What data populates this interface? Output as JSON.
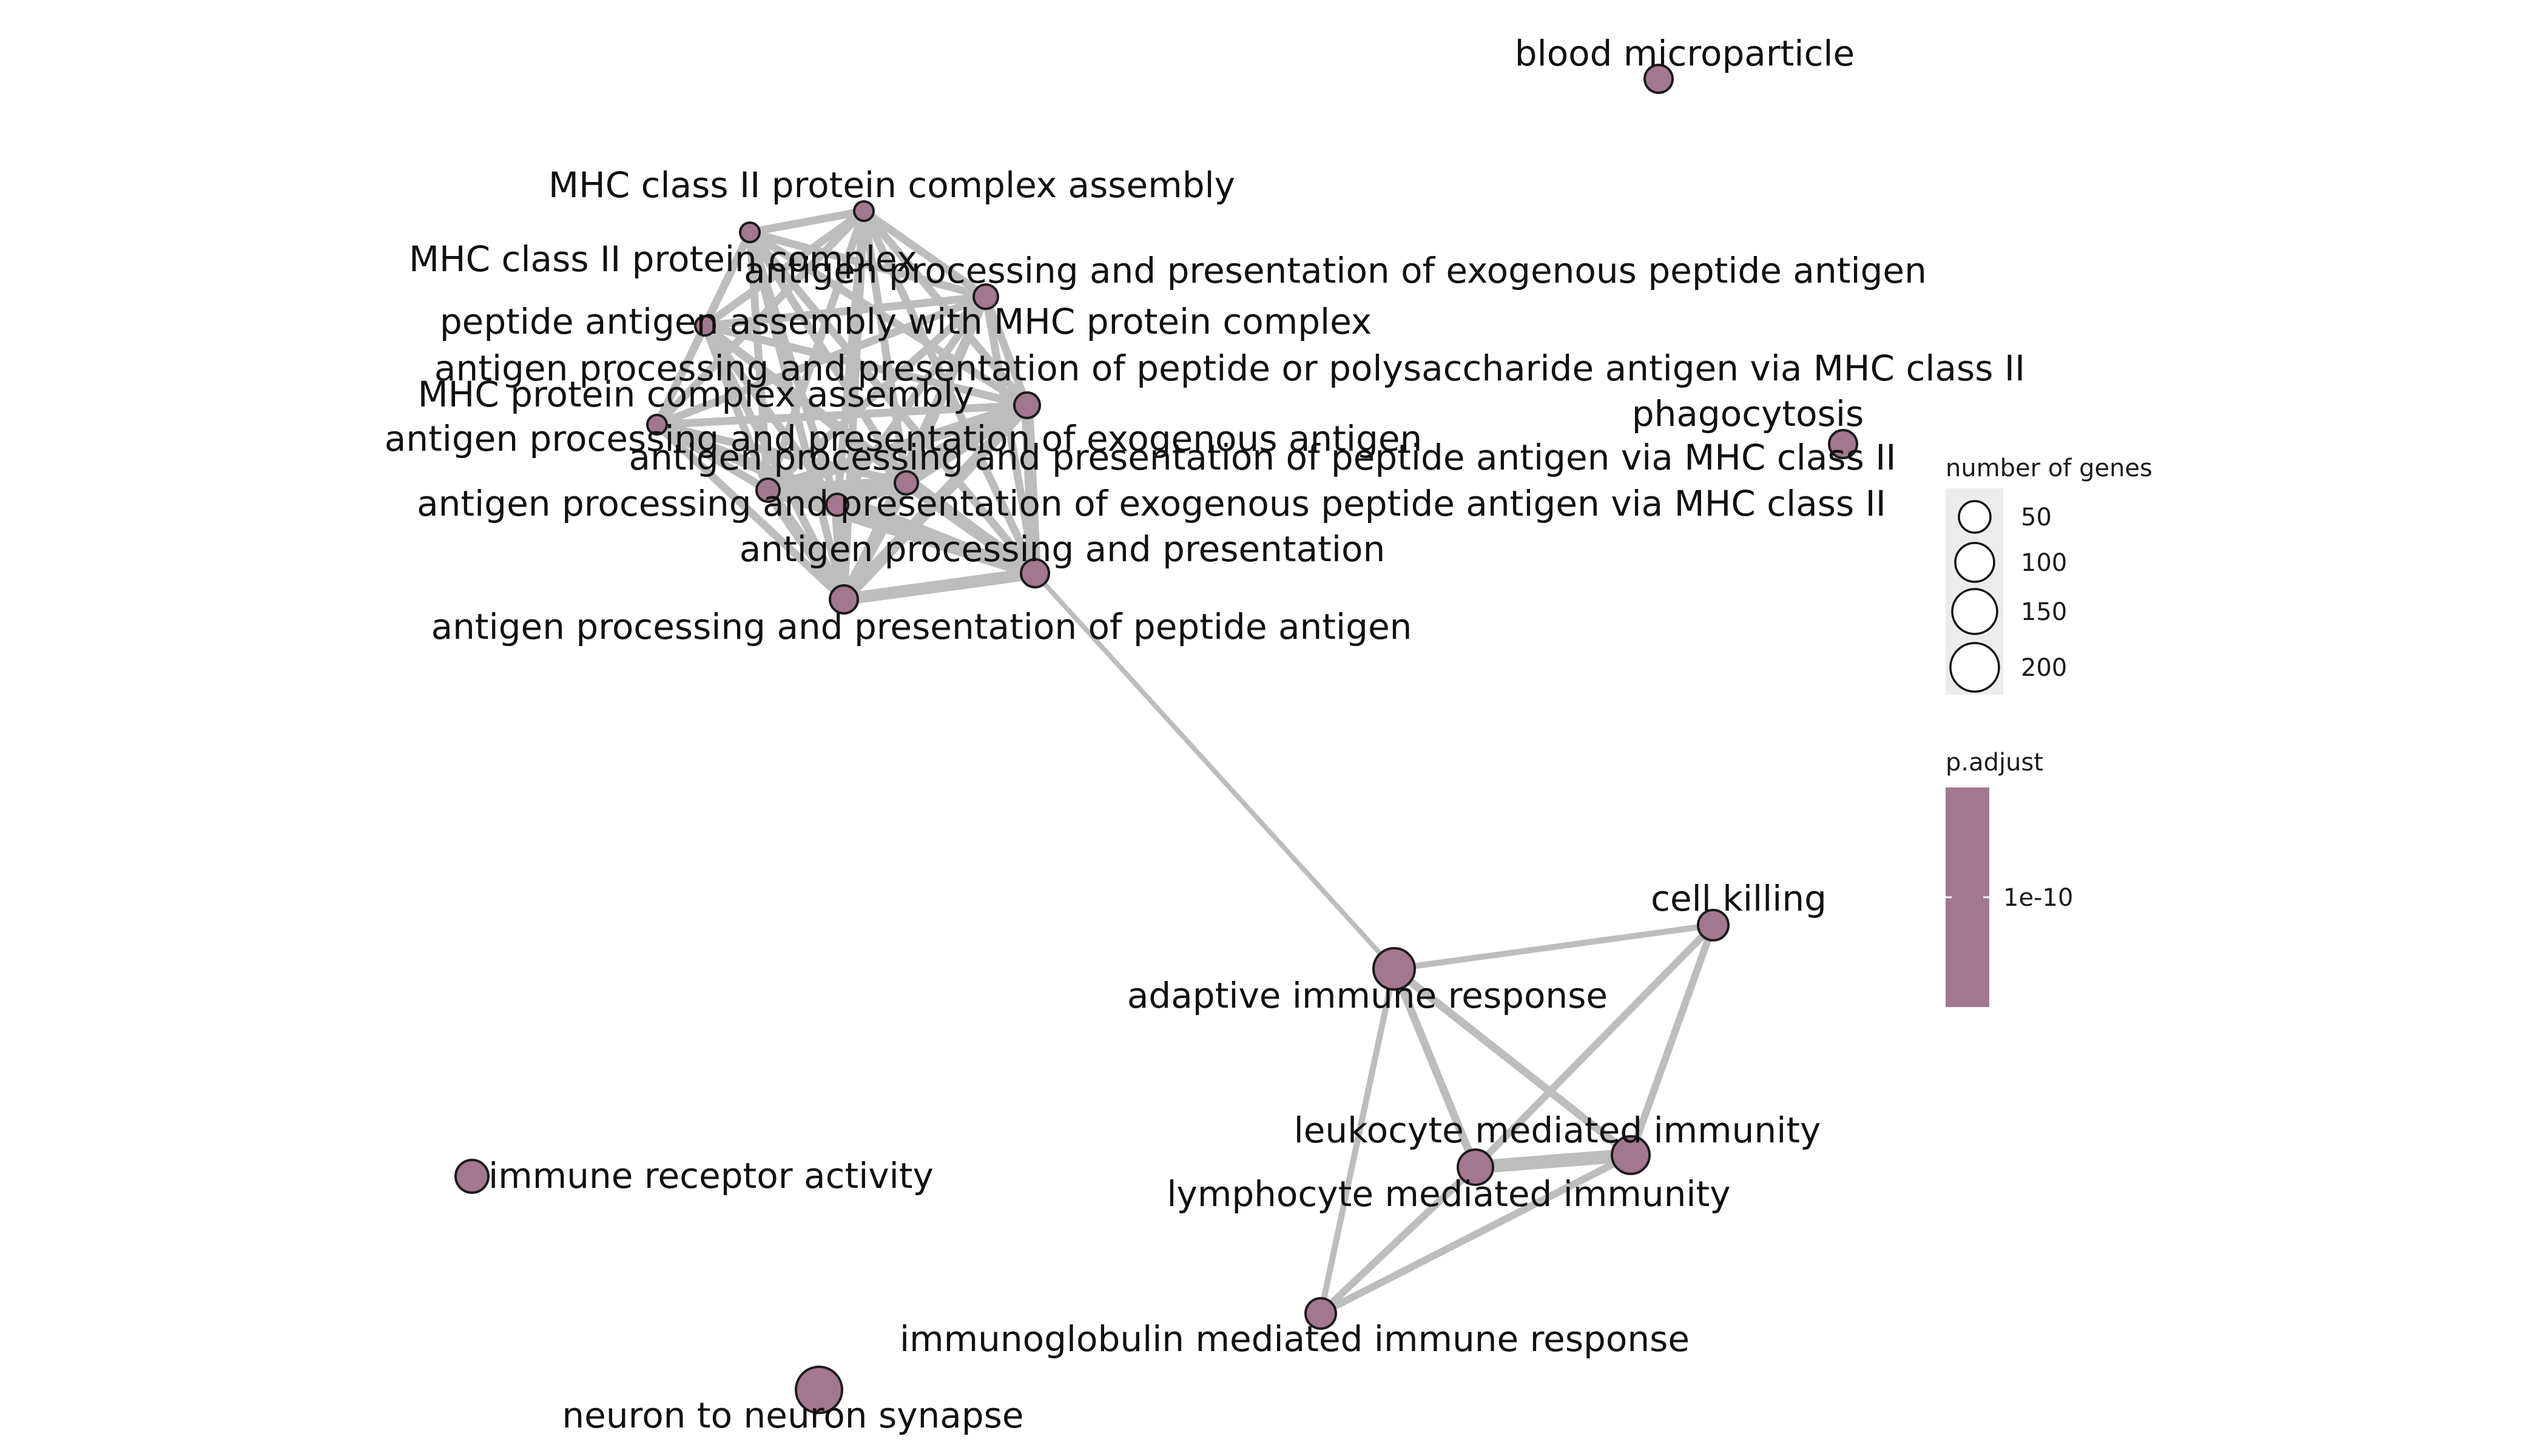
{
  "network": {
    "nodes": [
      {
        "id": "blood-microparticle",
        "label": "blood microparticle"
      },
      {
        "id": "mhc2-assembly",
        "label": "MHC class II protein complex assembly"
      },
      {
        "id": "mhc2-complex",
        "label": "MHC class II protein complex"
      },
      {
        "id": "exo-peptide",
        "label": "antigen processing and presentation of exogenous peptide antigen"
      },
      {
        "id": "peptide-assembly",
        "label": "peptide antigen assembly with MHC protein complex"
      },
      {
        "id": "peptide-poly-mhc2",
        "label": "antigen processing and presentation of peptide or polysaccharide antigen via MHC class II"
      },
      {
        "id": "mhc-assembly",
        "label": "MHC protein complex assembly"
      },
      {
        "id": "exo-antigen",
        "label": "antigen processing and presentation of exogenous antigen"
      },
      {
        "id": "peptide-mhc2",
        "label": "antigen processing and presentation of peptide antigen via MHC class II"
      },
      {
        "id": "exo-peptide-mhc2",
        "label": "antigen processing and presentation of exogenous peptide antigen via MHC class II"
      },
      {
        "id": "app",
        "label": "antigen processing and presentation"
      },
      {
        "id": "app-peptide",
        "label": "antigen processing and presentation of peptide antigen"
      },
      {
        "id": "phagocytosis",
        "label": "phagocytosis"
      },
      {
        "id": "cell-killing",
        "label": "cell killing"
      },
      {
        "id": "adaptive",
        "label": "adaptive immune response"
      },
      {
        "id": "leukocyte",
        "label": "leukocyte mediated immunity"
      },
      {
        "id": "lymphocyte",
        "label": "lymphocyte mediated immunity"
      },
      {
        "id": "immunoglobulin",
        "label": "immunoglobulin mediated immune response"
      },
      {
        "id": "receptor",
        "label": "immune receptor activity"
      },
      {
        "id": "synapse",
        "label": "neuron to neuron synapse"
      }
    ],
    "edges": [
      [
        "app",
        "adaptive"
      ],
      [
        "adaptive",
        "cell-killing"
      ],
      [
        "adaptive",
        "leukocyte"
      ],
      [
        "adaptive",
        "lymphocyte"
      ],
      [
        "adaptive",
        "immunoglobulin"
      ],
      [
        "cell-killing",
        "leukocyte"
      ],
      [
        "cell-killing",
        "lymphocyte"
      ],
      [
        "leukocyte",
        "lymphocyte"
      ],
      [
        "leukocyte",
        "immunoglobulin"
      ],
      [
        "lymphocyte",
        "immunoglobulin"
      ]
    ],
    "node_color": "#a3788f",
    "edge_color": "#bdbdbd"
  },
  "legend": {
    "size_title": "number of genes",
    "size_items": [
      {
        "label": "50",
        "genes": 50
      },
      {
        "label": "100",
        "genes": 100
      },
      {
        "label": "150",
        "genes": 150
      },
      {
        "label": "200",
        "genes": 200
      }
    ],
    "color_title": "p.adjust",
    "color_tick": "1e-10",
    "colorbar_color": "#a3788f"
  }
}
